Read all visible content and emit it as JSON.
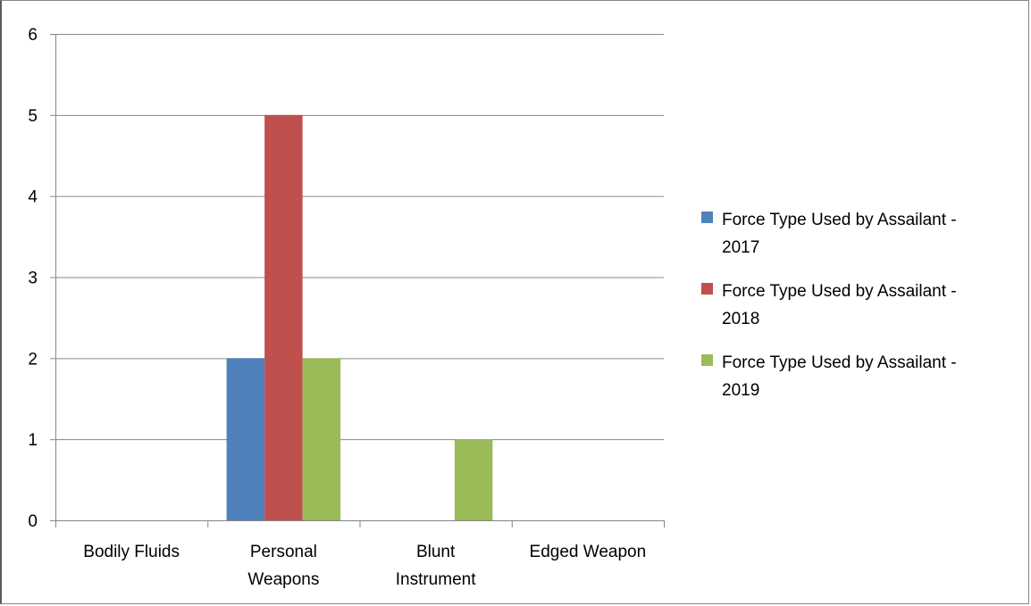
{
  "chart_data": {
    "type": "bar",
    "title": "",
    "xlabel": "",
    "ylabel": "",
    "categories": [
      [
        "Bodily Fluids"
      ],
      [
        "Personal",
        "Weapons"
      ],
      [
        "Blunt",
        "Instrument"
      ],
      [
        "Edged Weapon"
      ]
    ],
    "series": [
      {
        "name": [
          "Force Type Used by Assailant -",
          "2017"
        ],
        "color": "#4f81bd",
        "values": [
          0,
          2,
          0,
          0
        ]
      },
      {
        "name": [
          "Force Type Used by Assailant -",
          "2018"
        ],
        "color": "#c0504d",
        "values": [
          0,
          5,
          0,
          0
        ]
      },
      {
        "name": [
          "Force Type Used by Assailant -",
          "2019"
        ],
        "color": "#9bbb59",
        "values": [
          0,
          2,
          1,
          0
        ]
      }
    ],
    "ylim": [
      0,
      6
    ],
    "yticks": [
      0,
      1,
      2,
      3,
      4,
      5,
      6
    ],
    "grid": true,
    "legend_position": "right"
  }
}
